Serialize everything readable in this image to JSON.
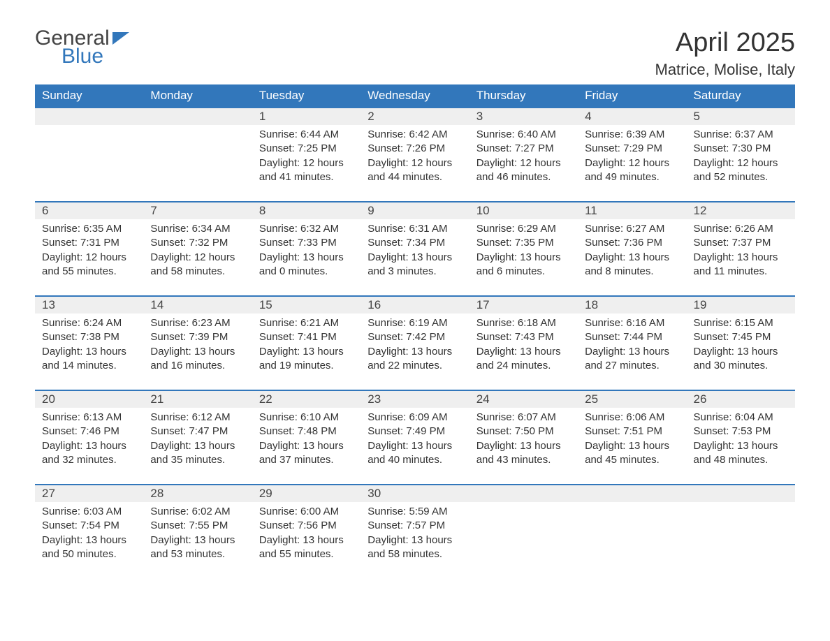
{
  "brand": {
    "part1": "General",
    "part2": "Blue"
  },
  "title": "April 2025",
  "location": "Matrice, Molise, Italy",
  "colors": {
    "header_bg": "#3277bb",
    "header_text": "#ffffff",
    "daynum_bg": "#efefef",
    "row_border": "#3277bb",
    "body_text": "#333333",
    "page_bg": "#ffffff"
  },
  "typography": {
    "title_fontsize": 38,
    "location_fontsize": 22,
    "header_fontsize": 17,
    "daynum_fontsize": 17,
    "body_fontsize": 15
  },
  "weekdays": [
    "Sunday",
    "Monday",
    "Tuesday",
    "Wednesday",
    "Thursday",
    "Friday",
    "Saturday"
  ],
  "weeks": [
    [
      null,
      null,
      {
        "n": "1",
        "sunrise": "Sunrise: 6:44 AM",
        "sunset": "Sunset: 7:25 PM",
        "daylight": "Daylight: 12 hours and 41 minutes."
      },
      {
        "n": "2",
        "sunrise": "Sunrise: 6:42 AM",
        "sunset": "Sunset: 7:26 PM",
        "daylight": "Daylight: 12 hours and 44 minutes."
      },
      {
        "n": "3",
        "sunrise": "Sunrise: 6:40 AM",
        "sunset": "Sunset: 7:27 PM",
        "daylight": "Daylight: 12 hours and 46 minutes."
      },
      {
        "n": "4",
        "sunrise": "Sunrise: 6:39 AM",
        "sunset": "Sunset: 7:29 PM",
        "daylight": "Daylight: 12 hours and 49 minutes."
      },
      {
        "n": "5",
        "sunrise": "Sunrise: 6:37 AM",
        "sunset": "Sunset: 7:30 PM",
        "daylight": "Daylight: 12 hours and 52 minutes."
      }
    ],
    [
      {
        "n": "6",
        "sunrise": "Sunrise: 6:35 AM",
        "sunset": "Sunset: 7:31 PM",
        "daylight": "Daylight: 12 hours and 55 minutes."
      },
      {
        "n": "7",
        "sunrise": "Sunrise: 6:34 AM",
        "sunset": "Sunset: 7:32 PM",
        "daylight": "Daylight: 12 hours and 58 minutes."
      },
      {
        "n": "8",
        "sunrise": "Sunrise: 6:32 AM",
        "sunset": "Sunset: 7:33 PM",
        "daylight": "Daylight: 13 hours and 0 minutes."
      },
      {
        "n": "9",
        "sunrise": "Sunrise: 6:31 AM",
        "sunset": "Sunset: 7:34 PM",
        "daylight": "Daylight: 13 hours and 3 minutes."
      },
      {
        "n": "10",
        "sunrise": "Sunrise: 6:29 AM",
        "sunset": "Sunset: 7:35 PM",
        "daylight": "Daylight: 13 hours and 6 minutes."
      },
      {
        "n": "11",
        "sunrise": "Sunrise: 6:27 AM",
        "sunset": "Sunset: 7:36 PM",
        "daylight": "Daylight: 13 hours and 8 minutes."
      },
      {
        "n": "12",
        "sunrise": "Sunrise: 6:26 AM",
        "sunset": "Sunset: 7:37 PM",
        "daylight": "Daylight: 13 hours and 11 minutes."
      }
    ],
    [
      {
        "n": "13",
        "sunrise": "Sunrise: 6:24 AM",
        "sunset": "Sunset: 7:38 PM",
        "daylight": "Daylight: 13 hours and 14 minutes."
      },
      {
        "n": "14",
        "sunrise": "Sunrise: 6:23 AM",
        "sunset": "Sunset: 7:39 PM",
        "daylight": "Daylight: 13 hours and 16 minutes."
      },
      {
        "n": "15",
        "sunrise": "Sunrise: 6:21 AM",
        "sunset": "Sunset: 7:41 PM",
        "daylight": "Daylight: 13 hours and 19 minutes."
      },
      {
        "n": "16",
        "sunrise": "Sunrise: 6:19 AM",
        "sunset": "Sunset: 7:42 PM",
        "daylight": "Daylight: 13 hours and 22 minutes."
      },
      {
        "n": "17",
        "sunrise": "Sunrise: 6:18 AM",
        "sunset": "Sunset: 7:43 PM",
        "daylight": "Daylight: 13 hours and 24 minutes."
      },
      {
        "n": "18",
        "sunrise": "Sunrise: 6:16 AM",
        "sunset": "Sunset: 7:44 PM",
        "daylight": "Daylight: 13 hours and 27 minutes."
      },
      {
        "n": "19",
        "sunrise": "Sunrise: 6:15 AM",
        "sunset": "Sunset: 7:45 PM",
        "daylight": "Daylight: 13 hours and 30 minutes."
      }
    ],
    [
      {
        "n": "20",
        "sunrise": "Sunrise: 6:13 AM",
        "sunset": "Sunset: 7:46 PM",
        "daylight": "Daylight: 13 hours and 32 minutes."
      },
      {
        "n": "21",
        "sunrise": "Sunrise: 6:12 AM",
        "sunset": "Sunset: 7:47 PM",
        "daylight": "Daylight: 13 hours and 35 minutes."
      },
      {
        "n": "22",
        "sunrise": "Sunrise: 6:10 AM",
        "sunset": "Sunset: 7:48 PM",
        "daylight": "Daylight: 13 hours and 37 minutes."
      },
      {
        "n": "23",
        "sunrise": "Sunrise: 6:09 AM",
        "sunset": "Sunset: 7:49 PM",
        "daylight": "Daylight: 13 hours and 40 minutes."
      },
      {
        "n": "24",
        "sunrise": "Sunrise: 6:07 AM",
        "sunset": "Sunset: 7:50 PM",
        "daylight": "Daylight: 13 hours and 43 minutes."
      },
      {
        "n": "25",
        "sunrise": "Sunrise: 6:06 AM",
        "sunset": "Sunset: 7:51 PM",
        "daylight": "Daylight: 13 hours and 45 minutes."
      },
      {
        "n": "26",
        "sunrise": "Sunrise: 6:04 AM",
        "sunset": "Sunset: 7:53 PM",
        "daylight": "Daylight: 13 hours and 48 minutes."
      }
    ],
    [
      {
        "n": "27",
        "sunrise": "Sunrise: 6:03 AM",
        "sunset": "Sunset: 7:54 PM",
        "daylight": "Daylight: 13 hours and 50 minutes."
      },
      {
        "n": "28",
        "sunrise": "Sunrise: 6:02 AM",
        "sunset": "Sunset: 7:55 PM",
        "daylight": "Daylight: 13 hours and 53 minutes."
      },
      {
        "n": "29",
        "sunrise": "Sunrise: 6:00 AM",
        "sunset": "Sunset: 7:56 PM",
        "daylight": "Daylight: 13 hours and 55 minutes."
      },
      {
        "n": "30",
        "sunrise": "Sunrise: 5:59 AM",
        "sunset": "Sunset: 7:57 PM",
        "daylight": "Daylight: 13 hours and 58 minutes."
      },
      null,
      null,
      null
    ]
  ]
}
